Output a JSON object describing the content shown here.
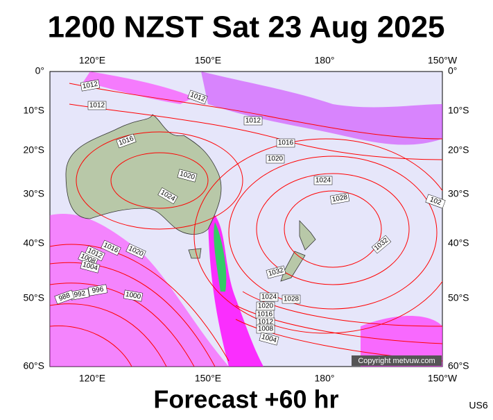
{
  "header": {
    "title": "1200 NZST Sat 23 Aug 2025"
  },
  "footer": {
    "forecast": "Forecast +60 hr",
    "code": "US6"
  },
  "map": {
    "top_labels": [
      "120°E",
      "150°E",
      "180°",
      "150°W"
    ],
    "bottom_labels": [
      "120°E",
      "150°E",
      "180°",
      "150°W"
    ],
    "left_labels": [
      "0°",
      "10°S",
      "20°S",
      "30°S",
      "40°S",
      "50°S",
      "60°S"
    ],
    "right_labels": [
      "0°",
      "10°S",
      "20°S",
      "30°S",
      "40°S",
      "50°S",
      "60°S"
    ],
    "isobar_labels": [
      "1012",
      "1012",
      "1012",
      "1012",
      "1016",
      "1016",
      "1020",
      "1020",
      "1024",
      "1024",
      "1028",
      "1028",
      "1032",
      "1032",
      "1016",
      "1012",
      "1008",
      "1004",
      "1020",
      "996",
      "1000",
      "992",
      "988",
      "1024",
      "1020",
      "1016",
      "1012",
      "1008",
      "1004",
      "102"
    ],
    "copyright": "Copyright metvuw.com"
  }
}
